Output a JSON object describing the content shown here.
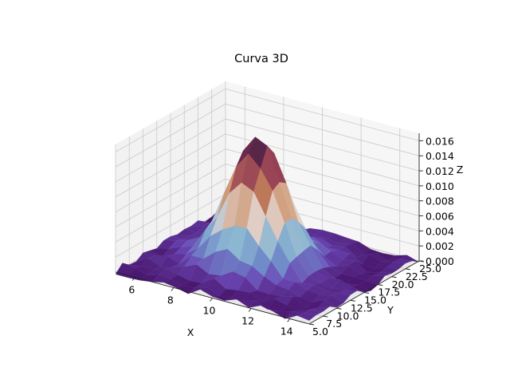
{
  "chart_data": {
    "type": "surface3d",
    "title": "Curva 3D",
    "xlabel": "X",
    "ylabel": "Y",
    "zlabel": "Z",
    "xlim": [
      5,
      15
    ],
    "ylim": [
      5,
      25
    ],
    "zlim": [
      0,
      0.017
    ],
    "x_ticks": [
      "6",
      "8",
      "10",
      "12",
      "14"
    ],
    "y_ticks": [
      "5.0",
      "7.5",
      "10.0",
      "12.5",
      "15.0",
      "17.5",
      "20.0",
      "22.5",
      "25.0"
    ],
    "z_ticks": [
      "0.000",
      "0.002",
      "0.004",
      "0.006",
      "0.008",
      "0.010",
      "0.012",
      "0.014",
      "0.016"
    ],
    "peak": {
      "x": 9.5,
      "y": 15.0,
      "z": 0.0165
    },
    "colormap": [
      "#2d1e3e",
      "#8a2f55",
      "#c8875a",
      "#e2d4cf",
      "#8ab6d1",
      "#6f8ac8",
      "#6a45b3",
      "#4a1870"
    ],
    "grid": true
  }
}
